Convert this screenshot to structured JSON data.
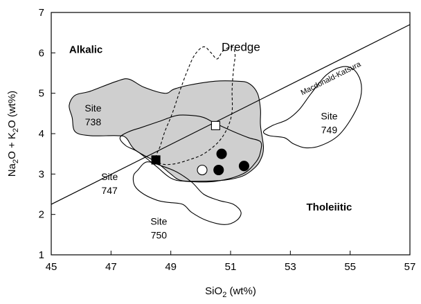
{
  "chart_data": {
    "type": "scatter",
    "xlabel": {
      "pre": "SiO",
      "sub": "2",
      "post": " (wt%)"
    },
    "ylabel": [
      {
        "text": "Na",
        "sub": false
      },
      {
        "text": "2",
        "sub": true
      },
      {
        "text": "O + K",
        "sub": false
      },
      {
        "text": "2",
        "sub": true
      },
      {
        "text": "O (wt%)",
        "sub": false
      }
    ],
    "xlim": [
      45,
      57
    ],
    "ylim": [
      1,
      7
    ],
    "xticks": [
      45,
      47,
      49,
      51,
      53,
      55,
      57
    ],
    "yticks": [
      1,
      2,
      3,
      4,
      5,
      6,
      7
    ],
    "region_labels": [
      {
        "text": "Alkalic",
        "x": 45.6,
        "y": 6.0
      },
      {
        "text": "Tholeiitic",
        "x": 54.3,
        "y": 2.1
      }
    ],
    "divider_line": {
      "name": "Macdonald-Katsura",
      "label_position": {
        "x": 53.4,
        "y": 4.95
      },
      "from": [
        45,
        2.25
      ],
      "to": [
        57,
        6.7
      ]
    },
    "fields": [
      {
        "id": "site-738",
        "label": [
          "Site",
          "738"
        ],
        "label_position": {
          "x": 46.4,
          "y": 4.55
        },
        "fill": "#cfcfcf",
        "stroke": "#000000",
        "dash": false,
        "outline": [
          [
            45.6,
            4.7
          ],
          [
            45.7,
            4.4
          ],
          [
            45.8,
            4.05
          ],
          [
            46.3,
            3.95
          ],
          [
            47.2,
            3.95
          ],
          [
            47.5,
            3.9
          ],
          [
            47.8,
            3.6
          ],
          [
            48.5,
            3.3
          ],
          [
            49.0,
            3.0
          ],
          [
            49.3,
            2.85
          ],
          [
            49.8,
            2.82
          ],
          [
            50.8,
            2.85
          ],
          [
            51.4,
            2.95
          ],
          [
            51.8,
            3.15
          ],
          [
            52.0,
            3.35
          ],
          [
            52.1,
            3.65
          ],
          [
            52.0,
            4.2
          ],
          [
            52.0,
            4.6
          ],
          [
            51.9,
            5.0
          ],
          [
            51.6,
            5.25
          ],
          [
            51.2,
            5.3
          ],
          [
            50.5,
            5.3
          ],
          [
            49.6,
            5.2
          ],
          [
            49.1,
            5.1
          ],
          [
            48.8,
            5.0
          ],
          [
            48.1,
            5.15
          ],
          [
            47.6,
            5.35
          ],
          [
            47.2,
            5.3
          ],
          [
            46.3,
            5.05
          ],
          [
            45.8,
            4.95
          ]
        ]
      },
      {
        "id": "site-747",
        "label": [
          "Site",
          "747"
        ],
        "label_position": {
          "x": 46.95,
          "y": 2.85
        },
        "fill": "none",
        "stroke": "#000000",
        "dash": false,
        "outline": [
          [
            47.3,
            3.9
          ],
          [
            47.6,
            4.05
          ],
          [
            48.0,
            4.15
          ],
          [
            48.6,
            4.3
          ],
          [
            49.2,
            4.45
          ],
          [
            49.7,
            4.45
          ],
          [
            50.1,
            4.4
          ],
          [
            50.5,
            4.25
          ],
          [
            51.1,
            4.05
          ],
          [
            51.6,
            3.9
          ],
          [
            52.0,
            3.8
          ],
          [
            52.0,
            3.55
          ],
          [
            51.85,
            3.3
          ],
          [
            51.4,
            3.0
          ],
          [
            50.5,
            2.82
          ],
          [
            49.5,
            2.82
          ],
          [
            49.0,
            2.9
          ],
          [
            48.5,
            3.2
          ],
          [
            47.9,
            3.55
          ],
          [
            47.5,
            3.7
          ]
        ]
      },
      {
        "id": "site-749",
        "label": [
          "Site",
          "749"
        ],
        "label_position": {
          "x": 54.3,
          "y": 4.35
        },
        "fill": "none",
        "stroke": "#000000",
        "dash": false,
        "outline": [
          [
            52.4,
            4.2
          ],
          [
            52.9,
            4.35
          ],
          [
            53.3,
            4.6
          ],
          [
            53.7,
            5.0
          ],
          [
            54.2,
            5.45
          ],
          [
            54.7,
            5.65
          ],
          [
            55.1,
            5.6
          ],
          [
            55.35,
            5.3
          ],
          [
            55.35,
            4.9
          ],
          [
            55.1,
            4.45
          ],
          [
            54.6,
            3.95
          ],
          [
            54.0,
            3.7
          ],
          [
            53.5,
            3.65
          ],
          [
            53.1,
            3.75
          ],
          [
            52.8,
            3.9
          ],
          [
            52.3,
            3.95
          ],
          [
            52.1,
            4.05
          ]
        ]
      },
      {
        "id": "site-750",
        "label": [
          "Site",
          "750"
        ],
        "label_position": {
          "x": 48.6,
          "y": 1.75
        },
        "fill": "none",
        "stroke": "#000000",
        "dash": false,
        "outline": [
          [
            48.2,
            3.3
          ],
          [
            48.7,
            3.2
          ],
          [
            49.2,
            3.05
          ],
          [
            49.7,
            2.8
          ],
          [
            50.1,
            2.5
          ],
          [
            50.6,
            2.35
          ],
          [
            51.1,
            2.25
          ],
          [
            51.35,
            2.05
          ],
          [
            51.2,
            1.85
          ],
          [
            50.8,
            1.75
          ],
          [
            50.2,
            1.85
          ],
          [
            49.7,
            2.05
          ],
          [
            49.4,
            2.25
          ],
          [
            48.9,
            2.3
          ],
          [
            48.55,
            2.35
          ],
          [
            48.1,
            2.5
          ],
          [
            47.8,
            2.7
          ],
          [
            47.75,
            2.95
          ],
          [
            47.9,
            3.1
          ]
        ]
      },
      {
        "id": "dredge",
        "label": [
          "Dredge"
        ],
        "label_position": {
          "x": 50.7,
          "y": 6.05
        },
        "fill": "none",
        "stroke": "#000000",
        "dash": true,
        "outline": [
          [
            48.5,
            3.4
          ],
          [
            48.65,
            3.7
          ],
          [
            48.8,
            4.05
          ],
          [
            49.05,
            4.5
          ],
          [
            49.3,
            5.05
          ],
          [
            49.55,
            5.55
          ],
          [
            49.8,
            5.95
          ],
          [
            50.1,
            6.15
          ],
          [
            50.35,
            6.0
          ],
          [
            50.55,
            5.85
          ],
          [
            50.75,
            6.05
          ],
          [
            51.05,
            6.15
          ],
          [
            51.15,
            5.95
          ],
          [
            51.1,
            5.6
          ],
          [
            51.05,
            5.1
          ],
          [
            51.05,
            4.55
          ],
          [
            50.9,
            4.15
          ],
          [
            50.6,
            3.8
          ],
          [
            50.1,
            3.5
          ],
          [
            49.6,
            3.35
          ],
          [
            49.1,
            3.25
          ],
          [
            48.7,
            3.25
          ]
        ]
      }
    ],
    "points": [
      {
        "x": 50.5,
        "y": 4.2,
        "marker": "square",
        "filled": false
      },
      {
        "x": 48.5,
        "y": 3.35,
        "marker": "square",
        "filled": true
      },
      {
        "x": 50.05,
        "y": 3.1,
        "marker": "circle",
        "filled": false
      },
      {
        "x": 50.6,
        "y": 3.1,
        "marker": "circle",
        "filled": true
      },
      {
        "x": 50.7,
        "y": 3.5,
        "marker": "circle",
        "filled": true
      },
      {
        "x": 51.45,
        "y": 3.2,
        "marker": "circle",
        "filled": true
      }
    ],
    "grid": false
  }
}
